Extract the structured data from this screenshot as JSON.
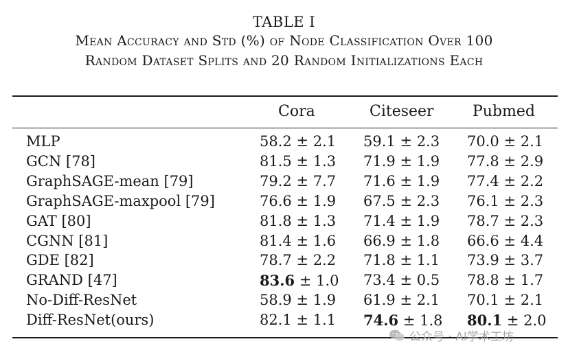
{
  "caption": {
    "label": "TABLE I",
    "line1": "Mean Accuracy and Std (%) of Node Classification Over 100",
    "line2": "Random Dataset Splits and 20 Random Initializations Each"
  },
  "table": {
    "headers": [
      "",
      "Cora",
      "Citeseer",
      "Pubmed"
    ],
    "rows": [
      {
        "method": "MLP",
        "cora": {
          "mean": "58.2",
          "std": "2.1",
          "bold": false
        },
        "citeseer": {
          "mean": "59.1",
          "std": "2.3",
          "bold": false
        },
        "pubmed": {
          "mean": "70.0",
          "std": "2.1",
          "bold": false
        }
      },
      {
        "method": "GCN [78]",
        "cora": {
          "mean": "81.5",
          "std": "1.3",
          "bold": false
        },
        "citeseer": {
          "mean": "71.9",
          "std": "1.9",
          "bold": false
        },
        "pubmed": {
          "mean": "77.8",
          "std": "2.9",
          "bold": false
        }
      },
      {
        "method": "GraphSAGE-mean [79]",
        "cora": {
          "mean": "79.2",
          "std": "7.7",
          "bold": false
        },
        "citeseer": {
          "mean": "71.6",
          "std": "1.9",
          "bold": false
        },
        "pubmed": {
          "mean": "77.4",
          "std": "2.2",
          "bold": false
        }
      },
      {
        "method": "GraphSAGE-maxpool [79]",
        "cora": {
          "mean": "76.6",
          "std": "1.9",
          "bold": false
        },
        "citeseer": {
          "mean": "67.5",
          "std": "2.3",
          "bold": false
        },
        "pubmed": {
          "mean": "76.1",
          "std": "2.3",
          "bold": false
        }
      },
      {
        "method": "GAT [80]",
        "cora": {
          "mean": "81.8",
          "std": "1.3",
          "bold": false
        },
        "citeseer": {
          "mean": "71.4",
          "std": "1.9",
          "bold": false
        },
        "pubmed": {
          "mean": "78.7",
          "std": "2.3",
          "bold": false
        }
      },
      {
        "method": "CGNN [81]",
        "cora": {
          "mean": "81.4",
          "std": "1.6",
          "bold": false
        },
        "citeseer": {
          "mean": "66.9",
          "std": "1.8",
          "bold": false
        },
        "pubmed": {
          "mean": "66.6",
          "std": "4.4",
          "bold": false
        }
      },
      {
        "method": "GDE [82]",
        "cora": {
          "mean": "78.7",
          "std": "2.2",
          "bold": false
        },
        "citeseer": {
          "mean": "71.8",
          "std": "1.1",
          "bold": false
        },
        "pubmed": {
          "mean": "73.9",
          "std": "3.7",
          "bold": false
        }
      },
      {
        "method": "GRAND [47]",
        "cora": {
          "mean": "83.6",
          "std": "1.0",
          "bold": true
        },
        "citeseer": {
          "mean": "73.4",
          "std": "0.5",
          "bold": false
        },
        "pubmed": {
          "mean": "78.8",
          "std": "1.7",
          "bold": false
        }
      },
      {
        "method": "No-Diff-ResNet",
        "cora": {
          "mean": "58.9",
          "std": "1.9",
          "bold": false
        },
        "citeseer": {
          "mean": "61.9",
          "std": "2.1",
          "bold": false
        },
        "pubmed": {
          "mean": "70.1",
          "std": "2.1",
          "bold": false
        }
      },
      {
        "method": "Diff-ResNet(ours)",
        "cora": {
          "mean": "82.1",
          "std": "1.1",
          "bold": false
        },
        "citeseer": {
          "mean": "74.6",
          "std": "1.8",
          "bold": true
        },
        "pubmed": {
          "mean": "80.1",
          "std": "2.0",
          "bold": true
        }
      }
    ],
    "pm_symbol": "±"
  },
  "watermark": {
    "text": "公众号 · AI学术工坊",
    "icon": "wechat-icon"
  }
}
